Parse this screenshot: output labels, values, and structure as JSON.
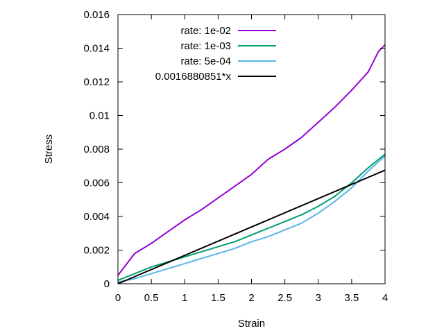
{
  "chart_data": {
    "type": "line",
    "xlabel": "Strain",
    "ylabel": "Stress",
    "xlim": [
      0,
      4
    ],
    "ylim": [
      0,
      0.016
    ],
    "xticks": [
      0,
      0.5,
      1,
      1.5,
      2,
      2.5,
      3,
      3.5,
      4
    ],
    "xtick_labels": [
      "0",
      "0.5",
      "1",
      "1.5",
      "2",
      "2.5",
      "3",
      "3.5",
      "4"
    ],
    "yticks": [
      0,
      0.002,
      0.004,
      0.006,
      0.008,
      0.01,
      0.012,
      0.014,
      0.016
    ],
    "ytick_labels": [
      "0",
      "0.002",
      "0.004",
      "0.006",
      "0.008",
      "0.01",
      "0.012",
      "0.014",
      "0.016"
    ],
    "grid": false,
    "legend_position": "top-left",
    "series": [
      {
        "name": "rate: 1e-02",
        "color": "#9400d3",
        "x": [
          0,
          0.25,
          0.5,
          0.75,
          1,
          1.25,
          1.5,
          1.75,
          2,
          2.25,
          2.5,
          2.75,
          3,
          3.25,
          3.5,
          3.75,
          3.9,
          4
        ],
        "y": [
          0.0005,
          0.0018,
          0.0024,
          0.0031,
          0.0038,
          0.0044,
          0.0051,
          0.0058,
          0.0065,
          0.0074,
          0.008,
          0.0087,
          0.0096,
          0.0105,
          0.0115,
          0.0126,
          0.0138,
          0.0142
        ]
      },
      {
        "name": "rate: 1e-03",
        "color": "#009e73",
        "x": [
          0,
          0.25,
          0.5,
          0.75,
          1,
          1.25,
          1.5,
          1.75,
          2,
          2.25,
          2.5,
          2.75,
          3,
          3.25,
          3.5,
          3.75,
          4
        ],
        "y": [
          0.0002,
          0.0006,
          0.001,
          0.0013,
          0.0016,
          0.0019,
          0.0022,
          0.0025,
          0.0029,
          0.0033,
          0.0037,
          0.0041,
          0.0046,
          0.0052,
          0.006,
          0.0069,
          0.0077
        ]
      },
      {
        "name": "rate: 5e-04",
        "color": "#56b4e9",
        "x": [
          0,
          0.25,
          0.5,
          0.75,
          1,
          1.25,
          1.5,
          1.75,
          2,
          2.25,
          2.5,
          2.75,
          3,
          3.25,
          3.5,
          3.75,
          4
        ],
        "y": [
          0.0001,
          0.0003,
          0.0006,
          0.0009,
          0.0012,
          0.0015,
          0.0018,
          0.0021,
          0.0025,
          0.0028,
          0.0032,
          0.0036,
          0.0042,
          0.0049,
          0.0057,
          0.0067,
          0.0076
        ]
      },
      {
        "name": "0.0016880851*x",
        "color": "#000000",
        "x": [
          0,
          4
        ],
        "y": [
          0,
          0.0067523404
        ]
      }
    ]
  }
}
